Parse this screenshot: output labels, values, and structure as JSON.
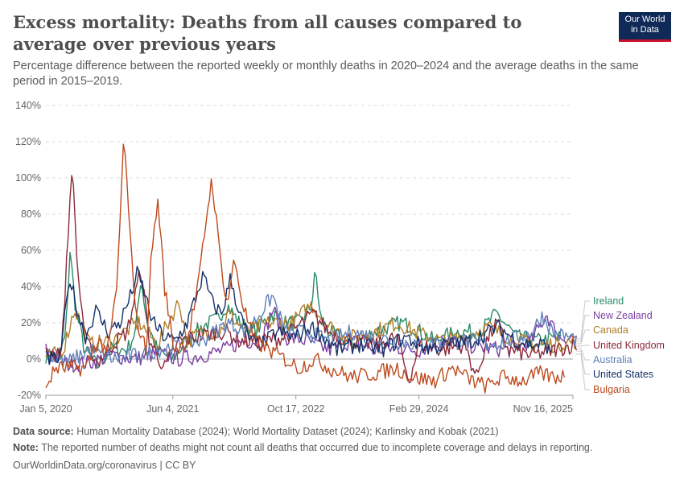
{
  "header": {
    "title": "Excess mortality: Deaths from all causes compared to average over previous years",
    "subtitle": "Percentage difference between the reported weekly or monthly deaths in 2020–2024 and the average deaths in the same period in 2015–2019.",
    "logo_line1": "Our World",
    "logo_line2": "in Data"
  },
  "footer": {
    "source_label": "Data source:",
    "source_text": "Human Mortality Database (2024); World Mortality Dataset (2024); Karlinsky and Kobak (2021)",
    "note_label": "Note:",
    "note_text": "The reported number of deaths might not count all deaths that occurred due to incomplete coverage and delays in reporting.",
    "credit": "OurWorldinData.org/coronavirus | CC BY"
  },
  "chart_data": {
    "type": "line",
    "title": "Excess mortality: Deaths from all causes compared to average over previous years",
    "ylabel": "",
    "y_unit": "%",
    "ylim": [
      -20,
      140
    ],
    "y_ticks": [
      -20,
      0,
      20,
      40,
      60,
      80,
      100,
      120,
      140
    ],
    "y_tick_labels": [
      "-20%",
      "0%",
      "20%",
      "40%",
      "60%",
      "80%",
      "100%",
      "120%",
      "140%"
    ],
    "xlim": [
      "2020-01-05",
      "2025-11-16"
    ],
    "x_ticks": [
      "2020-01-05",
      "2021-06-04",
      "2022-10-17",
      "2024-02-29",
      "2025-11-16"
    ],
    "x_tick_labels": [
      "Jan 5, 2020",
      "Jun 4, 2021",
      "Oct 17, 2022",
      "Feb 29, 2024",
      "Nov 16, 2025"
    ],
    "grid": "horizontal-dashed",
    "legend_placement": "right",
    "series": [
      {
        "name": "Ireland",
        "color": "#2a8a66",
        "points": [
          [
            "2020-01-05",
            2
          ],
          [
            "2020-02-20",
            0
          ],
          [
            "2020-03-25",
            12
          ],
          [
            "2020-04-12",
            60
          ],
          [
            "2020-05-05",
            28
          ],
          [
            "2020-06-10",
            5
          ],
          [
            "2020-08-01",
            -4
          ],
          [
            "2020-10-01",
            6
          ],
          [
            "2020-12-01",
            5
          ],
          [
            "2021-01-05",
            16
          ],
          [
            "2021-01-25",
            45
          ],
          [
            "2021-02-20",
            20
          ],
          [
            "2021-04-01",
            5
          ],
          [
            "2021-06-01",
            0
          ],
          [
            "2021-08-01",
            10
          ],
          [
            "2021-10-01",
            18
          ],
          [
            "2021-12-01",
            22
          ],
          [
            "2022-01-10",
            30
          ],
          [
            "2022-03-01",
            20
          ],
          [
            "2022-05-01",
            15
          ],
          [
            "2022-07-15",
            25
          ],
          [
            "2022-09-01",
            20
          ],
          [
            "2022-11-01",
            20
          ],
          [
            "2022-12-20",
            30
          ],
          [
            "2023-01-05",
            49
          ],
          [
            "2023-01-25",
            22
          ],
          [
            "2023-03-01",
            15
          ],
          [
            "2023-06-01",
            8
          ],
          [
            "2023-09-01",
            15
          ],
          [
            "2023-12-15",
            20
          ],
          [
            "2024-02-01",
            18
          ],
          [
            "2024-05-01",
            10
          ],
          [
            "2024-08-01",
            15
          ],
          [
            "2024-11-01",
            15
          ],
          [
            "2025-01-10",
            25
          ],
          [
            "2025-04-01",
            12
          ],
          [
            "2025-07-01",
            10
          ],
          [
            "2025-09-28",
            12
          ]
        ]
      },
      {
        "name": "New Zealand",
        "color": "#7b3fa1",
        "points": [
          [
            "2020-01-05",
            5
          ],
          [
            "2020-04-01",
            -3
          ],
          [
            "2020-07-01",
            -2
          ],
          [
            "2020-10-01",
            2
          ],
          [
            "2021-01-01",
            0
          ],
          [
            "2021-04-01",
            3
          ],
          [
            "2021-07-01",
            0
          ],
          [
            "2021-10-01",
            2
          ],
          [
            "2022-01-01",
            5
          ],
          [
            "2022-03-15",
            10
          ],
          [
            "2022-06-01",
            10
          ],
          [
            "2022-07-15",
            28
          ],
          [
            "2022-09-01",
            12
          ],
          [
            "2022-12-01",
            10
          ],
          [
            "2023-03-01",
            5
          ],
          [
            "2023-06-01",
            10
          ],
          [
            "2023-09-01",
            5
          ],
          [
            "2023-12-01",
            6
          ],
          [
            "2024-03-01",
            5
          ],
          [
            "2024-06-01",
            10
          ],
          [
            "2024-09-01",
            8
          ],
          [
            "2024-12-01",
            6
          ],
          [
            "2025-03-01",
            5
          ],
          [
            "2025-06-01",
            10
          ],
          [
            "2025-08-01",
            25
          ],
          [
            "2025-09-15",
            12
          ],
          [
            "2025-11-30",
            12
          ]
        ]
      },
      {
        "name": "Canada",
        "color": "#b07d2a",
        "points": [
          [
            "2020-01-05",
            0
          ],
          [
            "2020-03-15",
            5
          ],
          [
            "2020-05-01",
            28
          ],
          [
            "2020-07-01",
            8
          ],
          [
            "2020-10-01",
            10
          ],
          [
            "2020-12-20",
            18
          ],
          [
            "2021-01-20",
            20
          ],
          [
            "2021-04-01",
            8
          ],
          [
            "2021-06-30",
            32
          ],
          [
            "2021-08-01",
            10
          ],
          [
            "2021-10-01",
            15
          ],
          [
            "2021-12-15",
            15
          ],
          [
            "2022-01-15",
            25
          ],
          [
            "2022-04-01",
            15
          ],
          [
            "2022-07-01",
            20
          ],
          [
            "2022-10-01",
            20
          ],
          [
            "2022-12-20",
            30
          ],
          [
            "2023-03-01",
            18
          ],
          [
            "2023-06-01",
            12
          ],
          [
            "2023-09-01",
            15
          ],
          [
            "2023-12-01",
            20
          ],
          [
            "2024-03-01",
            14
          ],
          [
            "2024-06-01",
            10
          ],
          [
            "2024-09-01",
            12
          ],
          [
            "2024-12-01",
            18
          ],
          [
            "2025-03-01",
            12
          ],
          [
            "2025-06-01",
            8
          ],
          [
            "2025-09-01",
            8
          ],
          [
            "2025-11-30",
            10
          ]
        ]
      },
      {
        "name": "United Kingdom",
        "color": "#8c2a3a",
        "points": [
          [
            "2020-01-05",
            3
          ],
          [
            "2020-03-10",
            5
          ],
          [
            "2020-04-05",
            70
          ],
          [
            "2020-04-20",
            108
          ],
          [
            "2020-05-15",
            45
          ],
          [
            "2020-06-15",
            10
          ],
          [
            "2020-08-01",
            -2
          ],
          [
            "2020-10-01",
            8
          ],
          [
            "2020-12-01",
            15
          ],
          [
            "2021-01-25",
            50
          ],
          [
            "2021-03-01",
            10
          ],
          [
            "2021-05-01",
            -5
          ],
          [
            "2021-07-01",
            10
          ],
          [
            "2021-09-01",
            12
          ],
          [
            "2021-12-01",
            15
          ],
          [
            "2022-01-10",
            15
          ],
          [
            "2022-03-01",
            10
          ],
          [
            "2022-06-01",
            10
          ],
          [
            "2022-09-01",
            12
          ],
          [
            "2022-12-28",
            25
          ],
          [
            "2023-03-01",
            15
          ],
          [
            "2023-06-01",
            10
          ],
          [
            "2023-09-01",
            8
          ],
          [
            "2023-12-01",
            12
          ],
          [
            "2024-01-20",
            -12
          ],
          [
            "2024-03-01",
            8
          ],
          [
            "2024-06-01",
            5
          ],
          [
            "2024-09-01",
            8
          ],
          [
            "2024-10-20",
            -10
          ],
          [
            "2024-12-01",
            10
          ],
          [
            "2025-01-10",
            20
          ],
          [
            "2025-03-01",
            5
          ],
          [
            "2025-06-01",
            2
          ],
          [
            "2025-09-01",
            5
          ],
          [
            "2025-11-30",
            8
          ]
        ]
      },
      {
        "name": "Australia",
        "color": "#5d7fb8",
        "points": [
          [
            "2020-01-05",
            2
          ],
          [
            "2020-04-01",
            -2
          ],
          [
            "2020-07-01",
            5
          ],
          [
            "2020-10-01",
            0
          ],
          [
            "2021-01-01",
            2
          ],
          [
            "2021-04-01",
            5
          ],
          [
            "2021-07-01",
            8
          ],
          [
            "2021-10-01",
            10
          ],
          [
            "2022-01-15",
            20
          ],
          [
            "2022-04-01",
            15
          ],
          [
            "2022-07-15",
            35
          ],
          [
            "2022-09-01",
            15
          ],
          [
            "2022-12-01",
            15
          ],
          [
            "2023-03-01",
            10
          ],
          [
            "2023-06-01",
            15
          ],
          [
            "2023-09-01",
            12
          ],
          [
            "2023-12-01",
            10
          ],
          [
            "2024-03-01",
            8
          ],
          [
            "2024-06-01",
            10
          ],
          [
            "2024-09-01",
            10
          ],
          [
            "2024-12-01",
            8
          ],
          [
            "2025-03-01",
            10
          ],
          [
            "2025-06-01",
            15
          ],
          [
            "2025-07-15",
            24
          ],
          [
            "2025-09-01",
            14
          ],
          [
            "2025-11-30",
            11
          ]
        ]
      },
      {
        "name": "United States",
        "color": "#13306a",
        "points": [
          [
            "2020-01-05",
            0
          ],
          [
            "2020-03-01",
            0
          ],
          [
            "2020-04-12",
            45
          ],
          [
            "2020-05-15",
            25
          ],
          [
            "2020-06-15",
            12
          ],
          [
            "2020-07-25",
            27
          ],
          [
            "2020-09-15",
            15
          ],
          [
            "2020-11-01",
            20
          ],
          [
            "2020-12-15",
            35
          ],
          [
            "2021-01-10",
            47
          ],
          [
            "2021-02-01",
            40
          ],
          [
            "2021-03-15",
            20
          ],
          [
            "2021-05-01",
            12
          ],
          [
            "2021-06-15",
            10
          ],
          [
            "2021-08-01",
            20
          ],
          [
            "2021-09-15",
            38
          ],
          [
            "2021-10-05",
            46
          ],
          [
            "2021-11-15",
            30
          ],
          [
            "2021-12-20",
            25
          ],
          [
            "2022-01-25",
            45
          ],
          [
            "2022-03-01",
            25
          ],
          [
            "2022-04-15",
            10
          ],
          [
            "2022-06-01",
            8
          ],
          [
            "2022-08-01",
            15
          ],
          [
            "2022-10-17",
            12
          ],
          [
            "2022-12-15",
            18
          ],
          [
            "2023-01-15",
            15
          ],
          [
            "2023-04-01",
            5
          ],
          [
            "2023-07-01",
            8
          ],
          [
            "2023-10-01",
            5
          ],
          [
            "2024-01-05",
            12
          ],
          [
            "2024-04-01",
            6
          ],
          [
            "2024-07-01",
            8
          ],
          [
            "2024-10-01",
            10
          ],
          [
            "2025-01-15",
            18
          ],
          [
            "2025-04-01",
            10
          ],
          [
            "2025-06-01",
            8
          ],
          [
            "2025-08-01",
            8
          ],
          [
            "2025-08-20",
            0
          ]
        ]
      },
      {
        "name": "Bulgaria",
        "color": "#bd4a1d",
        "points": [
          [
            "2020-01-05",
            -15
          ],
          [
            "2020-02-15",
            -5
          ],
          [
            "2020-04-01",
            -5
          ],
          [
            "2020-06-15",
            -5
          ],
          [
            "2020-08-01",
            10
          ],
          [
            "2020-09-15",
            5
          ],
          [
            "2020-10-20",
            40
          ],
          [
            "2020-11-18",
            125
          ],
          [
            "2020-12-10",
            70
          ],
          [
            "2021-01-10",
            20
          ],
          [
            "2021-02-15",
            5
          ],
          [
            "2021-03-10",
            60
          ],
          [
            "2021-04-05",
            88
          ],
          [
            "2021-05-01",
            40
          ],
          [
            "2021-06-10",
            5
          ],
          [
            "2021-08-01",
            10
          ],
          [
            "2021-09-15",
            40
          ],
          [
            "2021-10-20",
            80
          ],
          [
            "2021-11-10",
            100
          ],
          [
            "2021-12-10",
            60
          ],
          [
            "2022-01-10",
            30
          ],
          [
            "2022-02-10",
            55
          ],
          [
            "2022-03-15",
            30
          ],
          [
            "2022-05-01",
            10
          ],
          [
            "2022-07-01",
            5
          ],
          [
            "2022-09-01",
            0
          ],
          [
            "2022-11-01",
            -5
          ],
          [
            "2023-01-01",
            0
          ],
          [
            "2023-03-01",
            -5
          ],
          [
            "2023-06-01",
            -10
          ],
          [
            "2023-09-01",
            -8
          ],
          [
            "2023-12-01",
            -5
          ],
          [
            "2024-02-01",
            -10
          ],
          [
            "2024-05-01",
            -12
          ],
          [
            "2024-07-15",
            -5
          ],
          [
            "2024-10-01",
            -12
          ],
          [
            "2024-12-01",
            -15
          ],
          [
            "2025-02-01",
            -10
          ],
          [
            "2025-05-01",
            -12
          ],
          [
            "2025-07-01",
            -8
          ],
          [
            "2025-09-01",
            -10
          ],
          [
            "2025-10-15",
            -9
          ]
        ]
      }
    ]
  }
}
